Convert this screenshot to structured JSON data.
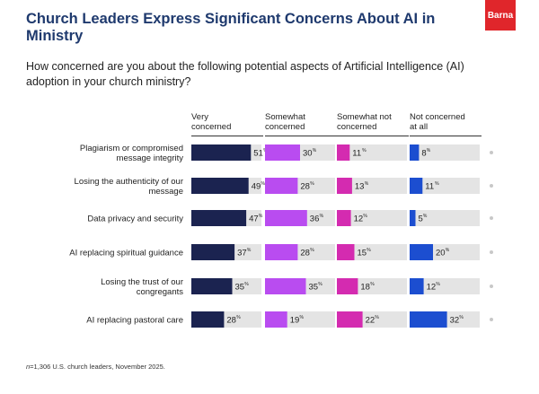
{
  "title": "Church Leaders Express Significant Concerns About AI in Ministry",
  "subtitle": "How concerned are you about the following potential aspects of Artificial Intelligence (AI) adoption in your church ministry?",
  "logo": "Barna",
  "footnote": {
    "prefix": "n",
    "text": "=1,306 U.S. church leaders, November 2025."
  },
  "chart_data": {
    "type": "bar",
    "title": "Church Leaders Express Significant Concerns About AI in Ministry",
    "categories": [
      [
        "Plagiarism or compromised",
        "message integrity"
      ],
      [
        "Losing the authenticity of our",
        "message"
      ],
      [
        "Data privacy and security"
      ],
      [
        "AI replacing spiritual guidance"
      ],
      [
        "Losing the trust of our",
        "congregants"
      ],
      [
        "AI replacing pastoral care"
      ]
    ],
    "series": [
      {
        "name": "Very concerned",
        "name_lines": [
          "Very",
          "concerned"
        ],
        "color": "#1b2350",
        "values": [
          51,
          49,
          47,
          37,
          35,
          28
        ]
      },
      {
        "name": "Somewhat concerned",
        "name_lines": [
          "Somewhat",
          "concerned"
        ],
        "color": "#b94cf0",
        "values": [
          30,
          28,
          36,
          28,
          35,
          19
        ]
      },
      {
        "name": "Somewhat not concerned",
        "name_lines": [
          "Somewhat not",
          "concerned"
        ],
        "color": "#d42bb0",
        "values": [
          11,
          13,
          12,
          15,
          18,
          22
        ]
      },
      {
        "name": "Not concerned at all",
        "name_lines": [
          "Not concerned",
          "at all"
        ],
        "color": "#1c4ed0",
        "values": [
          8,
          11,
          5,
          20,
          12,
          32
        ]
      }
    ],
    "unit": "%",
    "ylim": [
      0,
      100
    ]
  }
}
